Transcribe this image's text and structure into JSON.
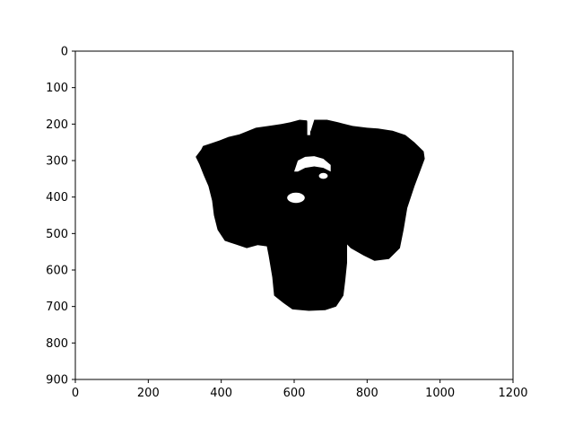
{
  "chart_data": {
    "type": "heatmap",
    "title": "",
    "xlabel": "",
    "ylabel": "",
    "description_type": "binary mask image shown with matplotlib imshow (black = 1, white = 0)",
    "xlim": [
      0,
      1200
    ],
    "ylim": [
      900,
      0
    ],
    "x_ticks": [
      0,
      200,
      400,
      600,
      800,
      1000,
      1200
    ],
    "y_ticks": [
      0,
      100,
      200,
      300,
      400,
      500,
      600,
      700,
      800,
      900
    ],
    "x_tick_labels": [
      "0",
      "200",
      "400",
      "600",
      "800",
      "1000",
      "1200"
    ],
    "y_tick_labels": [
      "0",
      "100",
      "200",
      "300",
      "400",
      "500",
      "600",
      "700",
      "800",
      "900"
    ],
    "grid": false,
    "legend": "none",
    "colors": {
      "mask": "#000000",
      "background": "#ffffff",
      "axes": "#000000"
    },
    "regions": {
      "main_shape": [
        [
          330,
          290
        ],
        [
          345,
          270
        ],
        [
          350,
          260
        ],
        [
          365,
          255
        ],
        [
          395,
          245
        ],
        [
          420,
          235
        ],
        [
          450,
          228
        ],
        [
          470,
          220
        ],
        [
          495,
          210
        ],
        [
          530,
          205
        ],
        [
          565,
          200
        ],
        [
          590,
          195
        ],
        [
          615,
          188
        ],
        [
          635,
          190
        ],
        [
          645,
          220
        ],
        [
          655,
          188
        ],
        [
          690,
          188
        ],
        [
          720,
          195
        ],
        [
          760,
          205
        ],
        [
          800,
          210
        ],
        [
          830,
          212
        ],
        [
          870,
          218
        ],
        [
          905,
          230
        ],
        [
          930,
          250
        ],
        [
          955,
          275
        ],
        [
          958,
          295
        ],
        [
          945,
          330
        ],
        [
          930,
          370
        ],
        [
          910,
          430
        ],
        [
          900,
          490
        ],
        [
          890,
          540
        ],
        [
          860,
          570
        ],
        [
          820,
          575
        ],
        [
          790,
          560
        ],
        [
          755,
          540
        ],
        [
          745,
          530
        ],
        [
          745,
          580
        ],
        [
          740,
          630
        ],
        [
          735,
          670
        ],
        [
          715,
          700
        ],
        [
          685,
          710
        ],
        [
          640,
          712
        ],
        [
          595,
          708
        ],
        [
          570,
          690
        ],
        [
          545,
          670
        ],
        [
          540,
          620
        ],
        [
          530,
          560
        ],
        [
          525,
          535
        ],
        [
          500,
          532
        ],
        [
          470,
          540
        ],
        [
          440,
          530
        ],
        [
          410,
          520
        ],
        [
          390,
          490
        ],
        [
          380,
          450
        ],
        [
          375,
          410
        ],
        [
          365,
          370
        ],
        [
          352,
          340
        ],
        [
          340,
          310
        ]
      ],
      "holes": [
        {
          "cx": 605,
          "cy": 402,
          "rx": 24,
          "ry": 14
        },
        {
          "cx": 680,
          "cy": 342,
          "rx": 12,
          "ry": 8
        }
      ],
      "top_notch": [
        [
          600,
          330
        ],
        [
          610,
          300
        ],
        [
          630,
          290
        ],
        [
          655,
          288
        ],
        [
          680,
          295
        ],
        [
          700,
          312
        ],
        [
          700,
          330
        ],
        [
          680,
          320
        ],
        [
          655,
          316
        ],
        [
          630,
          320
        ],
        [
          610,
          330
        ]
      ]
    }
  }
}
